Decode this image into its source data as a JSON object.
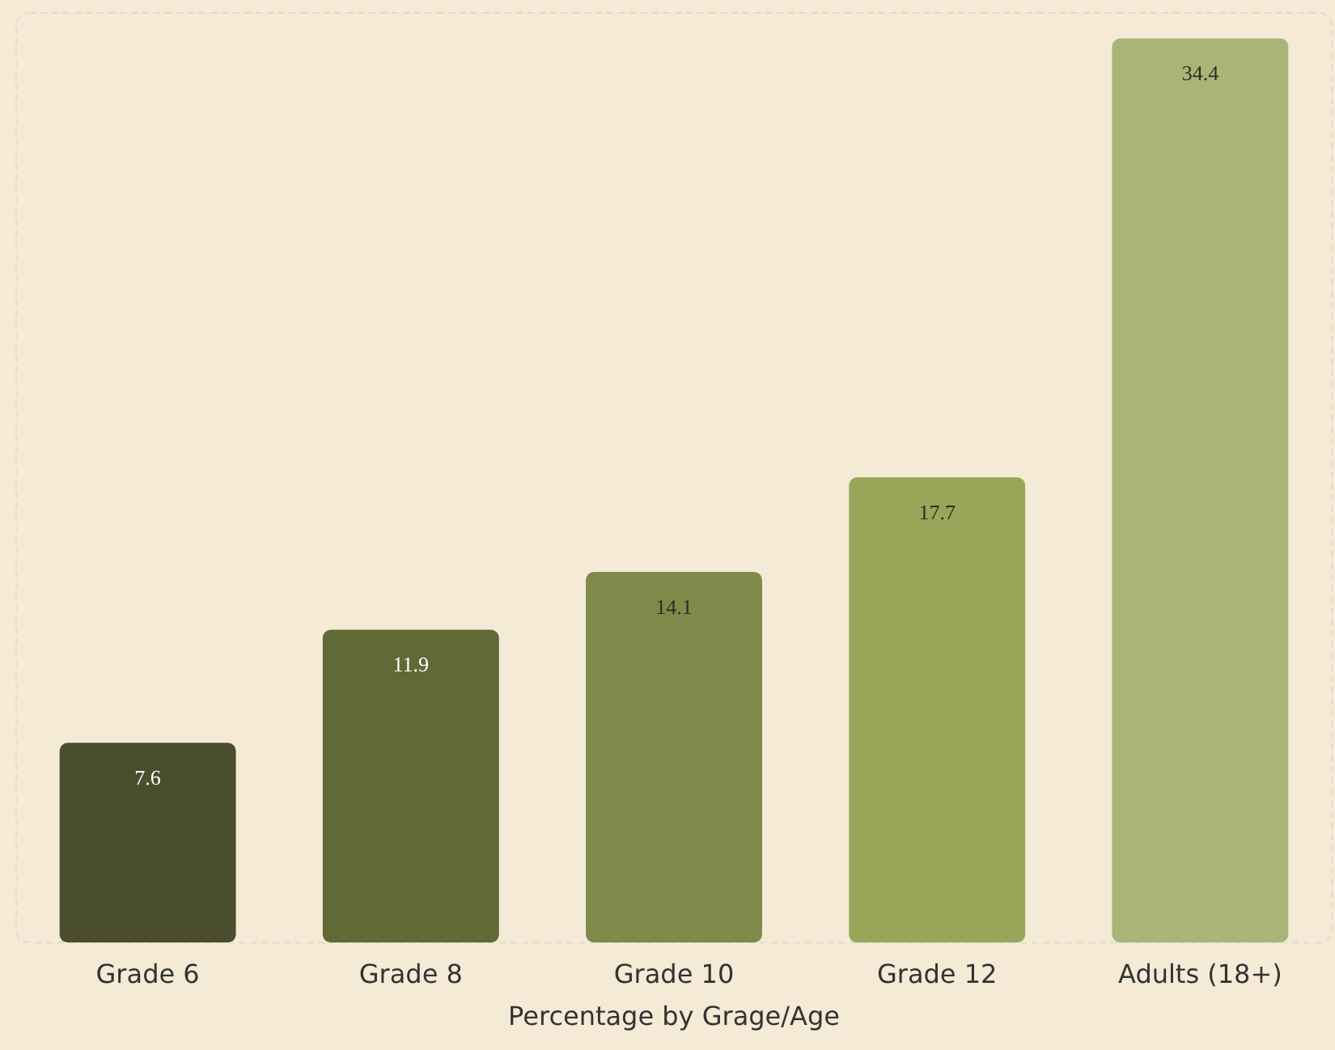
{
  "chart_data": {
    "type": "bar",
    "xlabel": "Percentage by Grage/Age",
    "categories": [
      "Grade 6",
      "Grade 8",
      "Grade 10",
      "Grade 12",
      "Adults (18+)"
    ],
    "values": [
      7.6,
      11.9,
      14.1,
      17.7,
      34.4
    ],
    "colors": [
      "#4a4e2c",
      "#5f6a36",
      "#7d8a4a",
      "#98a65a",
      "#a8b577"
    ],
    "data_labels": true,
    "grid": false,
    "legend": false
  }
}
